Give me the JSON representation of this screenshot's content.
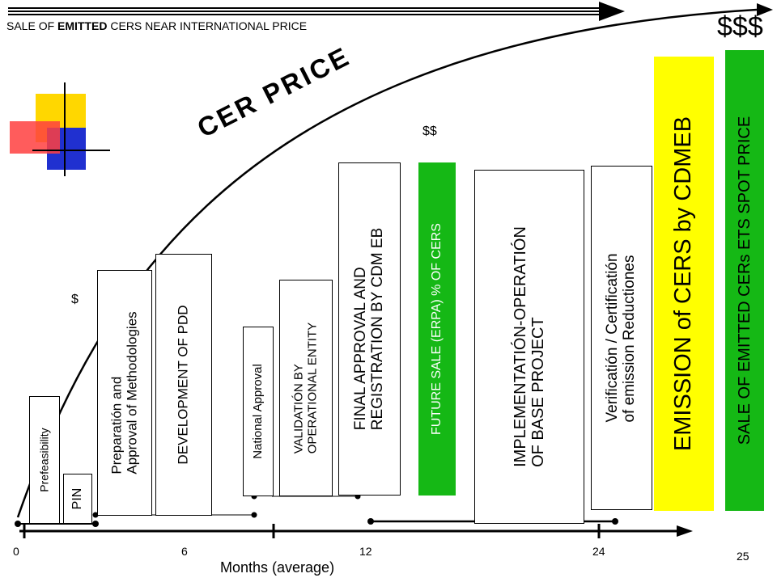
{
  "title": {
    "pre": "SALE OF ",
    "bold": "EMITTED",
    "post": " CERS NEAR INTERNATIONAL PRICE"
  },
  "curve_label": "CER PRICE",
  "price_markers": {
    "low": "$",
    "mid": "$$",
    "high": "$$$"
  },
  "stages": {
    "prefeasibility": "Prefeasibility",
    "pin": "PIN",
    "methodologies": {
      "line1": "Preparatión and",
      "line2": "Approval of Methodologies"
    },
    "pdd": "DEVELOPMENT OF PDD",
    "national": "National Approval",
    "validation": {
      "line1": "VALIDATIÓN BY",
      "line2": "OPERATIONAL ENTITY"
    },
    "registration": {
      "line1": "FINAL APPROVAL AND",
      "line2": "REGISTRATION BY CDM EB"
    },
    "future_sale": "FUTURE SALE (ERPA) % OF CERS",
    "implementation": {
      "line1": "IMPLEMENTATIÓN-OPERATIÓN",
      "line2": "OF BASE PROJECT"
    },
    "verification": {
      "line1": "Verificatión  / Certificatión",
      "line2": "of emission Reductiones"
    },
    "emission": "EMISSION of CERS by CDMEB",
    "sale": "SALE OF EMITTED CERs ETS SPOT PRICE"
  },
  "axis": {
    "ticks": [
      "0",
      "6",
      "12",
      "24"
    ],
    "label": "Months (average)"
  },
  "page_number": "25",
  "colors": {
    "green": "#15b815",
    "yellow": "#ffff00",
    "logo_yellow": "#ffd700",
    "logo_red": "#ff3030",
    "logo_blue": "#2030d0"
  }
}
